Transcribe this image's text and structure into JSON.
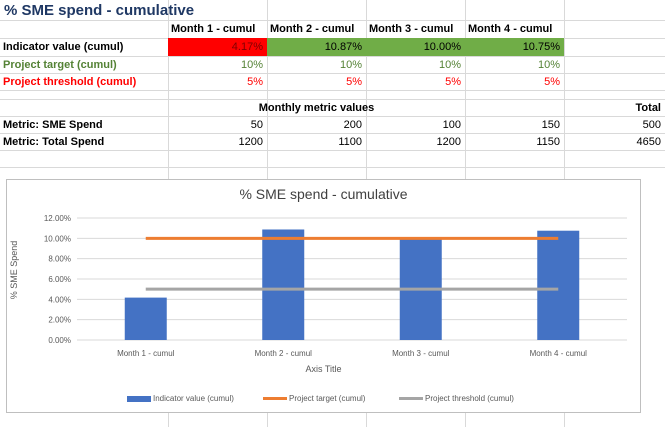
{
  "sheet": {
    "title": "% SME spend - cumulative",
    "headers": [
      "Month 1 - cumul",
      "Month 2 - cumul",
      "Month 3 - cumul",
      "Month 4 - cumul"
    ],
    "rows": {
      "indicator": {
        "label": "Indicator value (cumul)",
        "values": [
          "4.17%",
          "10.87%",
          "10.00%",
          "10.75%"
        ]
      },
      "target": {
        "label": "Project target (cumul)",
        "values": [
          "10%",
          "10%",
          "10%",
          "10%"
        ]
      },
      "threshold": {
        "label": "Project threshold (cumul)",
        "values": [
          "5%",
          "5%",
          "5%",
          "5%"
        ]
      }
    },
    "monthly_header": "Monthly metric values",
    "total_header": "Total",
    "metrics": {
      "sme": {
        "label": "Metric: SME Spend",
        "values": [
          "50",
          "200",
          "100",
          "150"
        ],
        "total": "500"
      },
      "total": {
        "label": "Metric: Total Spend",
        "values": [
          "1200",
          "1100",
          "1200",
          "1150"
        ],
        "total": "4650"
      }
    }
  },
  "colors": {
    "bar": "#4472c4",
    "target_line": "#ed7d31",
    "threshold_line": "#a5a5a5",
    "red_fill": "#ff0000",
    "green_fill": "#70ad47"
  },
  "chart_data": {
    "type": "bar",
    "title": "% SME spend - cumulative",
    "xlabel": "Axis Title",
    "ylabel": "% SME Spend",
    "categories": [
      "Month 1 - cumul",
      "Month 2 - cumul",
      "Month 3 - cumul",
      "Month 4 - cumul"
    ],
    "ylim": [
      0,
      12
    ],
    "yticks": [
      "0.00%",
      "2.00%",
      "4.00%",
      "6.00%",
      "8.00%",
      "10.00%",
      "12.00%"
    ],
    "series": [
      {
        "name": "Indicator value (cumul)",
        "kind": "bar",
        "values": [
          4.17,
          10.87,
          10.0,
          10.75
        ]
      },
      {
        "name": "Project target (cumul)",
        "kind": "line",
        "values": [
          10,
          10,
          10,
          10
        ]
      },
      {
        "name": "Project threshold (cumul)",
        "kind": "line",
        "values": [
          5,
          5,
          5,
          5
        ]
      }
    ],
    "grid": true,
    "legend": "bottom"
  }
}
